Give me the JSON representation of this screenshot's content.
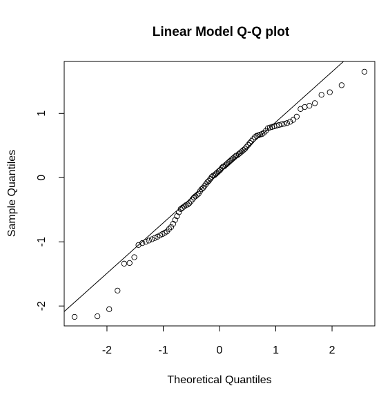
{
  "chart_data": {
    "type": "scatter",
    "title": "Linear Model Q-Q plot",
    "x_label": "Theoretical Quantiles",
    "y_label": "Sample Quantiles",
    "x": [
      -2.576,
      -2.17,
      -1.96,
      -1.812,
      -1.695,
      -1.598,
      -1.514,
      -1.44,
      -1.372,
      -1.311,
      -1.254,
      -1.2,
      -1.15,
      -1.103,
      -1.058,
      -1.015,
      -0.974,
      -0.935,
      -0.896,
      -0.86,
      -0.824,
      -0.789,
      -0.755,
      -0.722,
      -0.69,
      -0.659,
      -0.628,
      -0.598,
      -0.568,
      -0.539,
      -0.51,
      -0.482,
      -0.454,
      -0.426,
      -0.399,
      -0.372,
      -0.345,
      -0.319,
      -0.292,
      -0.266,
      -0.24,
      -0.215,
      -0.189,
      -0.164,
      -0.138,
      -0.113,
      -0.088,
      -0.063,
      -0.038,
      -0.013,
      0.013,
      0.038,
      0.063,
      0.088,
      0.113,
      0.138,
      0.164,
      0.189,
      0.215,
      0.24,
      0.266,
      0.292,
      0.319,
      0.345,
      0.372,
      0.399,
      0.426,
      0.454,
      0.482,
      0.51,
      0.539,
      0.568,
      0.598,
      0.628,
      0.659,
      0.69,
      0.722,
      0.755,
      0.789,
      0.824,
      0.86,
      0.896,
      0.935,
      0.974,
      1.015,
      1.058,
      1.103,
      1.15,
      1.2,
      1.254,
      1.311,
      1.372,
      1.44,
      1.514,
      1.598,
      1.695,
      1.812,
      1.96,
      2.17,
      2.576
    ],
    "values": [
      -2.17,
      -2.16,
      -2.05,
      -1.76,
      -1.34,
      -1.33,
      -1.24,
      -1.05,
      -1.02,
      -1.0,
      -0.98,
      -0.96,
      -0.94,
      -0.92,
      -0.9,
      -0.88,
      -0.86,
      -0.84,
      -0.8,
      -0.77,
      -0.72,
      -0.66,
      -0.6,
      -0.54,
      -0.49,
      -0.47,
      -0.45,
      -0.43,
      -0.42,
      -0.4,
      -0.37,
      -0.34,
      -0.31,
      -0.29,
      -0.27,
      -0.25,
      -0.21,
      -0.18,
      -0.16,
      -0.13,
      -0.1,
      -0.07,
      -0.05,
      -0.02,
      0.01,
      0.03,
      0.04,
      0.06,
      0.08,
      0.1,
      0.12,
      0.15,
      0.17,
      0.18,
      0.2,
      0.22,
      0.24,
      0.26,
      0.28,
      0.3,
      0.32,
      0.34,
      0.35,
      0.37,
      0.39,
      0.41,
      0.43,
      0.45,
      0.48,
      0.51,
      0.54,
      0.57,
      0.6,
      0.63,
      0.65,
      0.66,
      0.67,
      0.68,
      0.7,
      0.73,
      0.77,
      0.78,
      0.79,
      0.8,
      0.81,
      0.82,
      0.83,
      0.84,
      0.85,
      0.87,
      0.9,
      0.95,
      1.07,
      1.1,
      1.12,
      1.16,
      1.29,
      1.33,
      1.44,
      1.65
    ],
    "color": "#000000",
    "qq_line": {
      "intercept": 0.08,
      "slope": 0.785
    },
    "xlim": [
      -2.76,
      2.76
    ],
    "xticks": [
      -2,
      -1,
      0,
      1,
      2
    ],
    "ylim": [
      -2.31,
      1.81
    ],
    "yticks": [
      -2,
      -1,
      0,
      1
    ]
  }
}
